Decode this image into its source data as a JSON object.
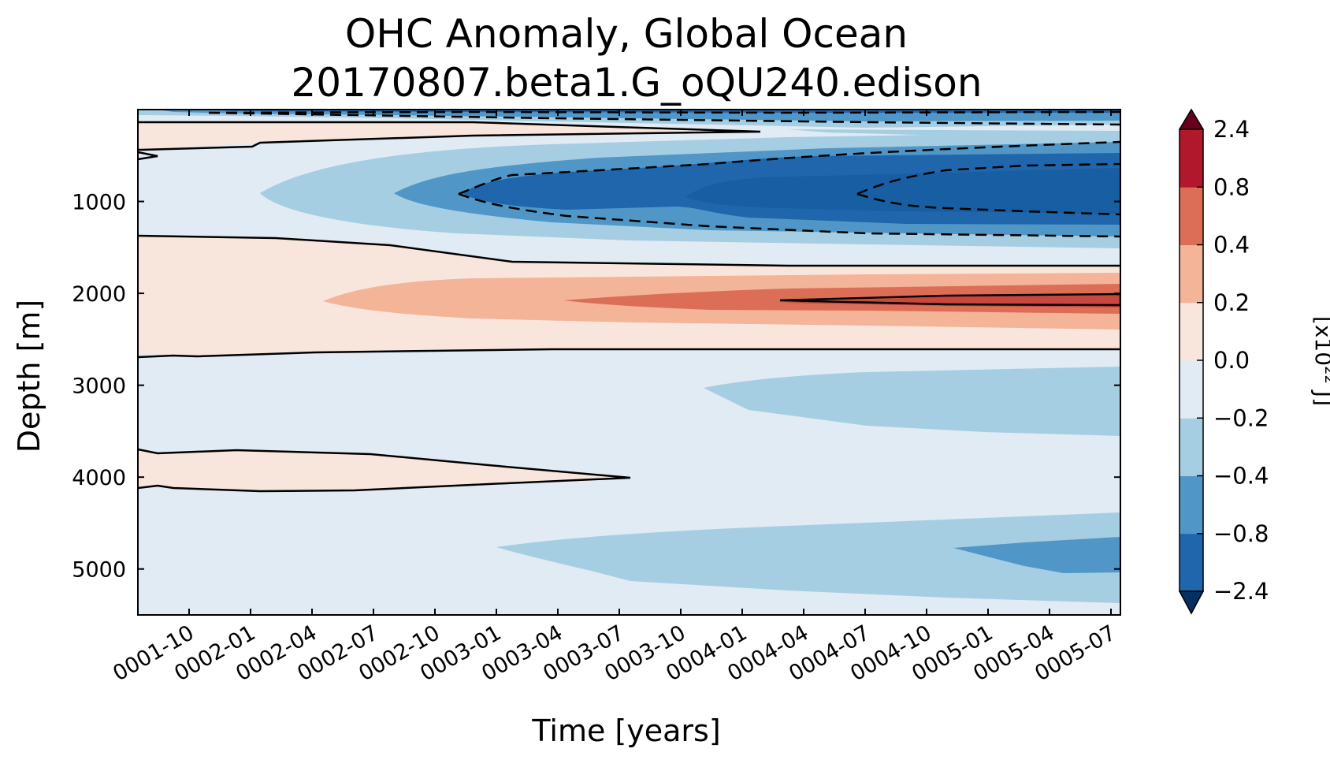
{
  "chart_data": {
    "type": "heatmap",
    "subtype": "filled-contour",
    "title_line1": "OHC Anomaly, Global Ocean",
    "title_line2": "20170807.beta1.G_oQU240.edison",
    "xlabel": "Time [years]",
    "ylabel": "Depth [m]",
    "colorbar_label_prefix": "[x10",
    "colorbar_label_exponent": "22",
    "colorbar_label_suffix": " J]",
    "x_tick_labels": [
      "0001-10",
      "0002-01",
      "0002-04",
      "0002-07",
      "0002-10",
      "0003-01",
      "0003-04",
      "0003-07",
      "0003-10",
      "0004-01",
      "0004-04",
      "0004-07",
      "0004-10",
      "0005-01",
      "0005-04",
      "0005-07"
    ],
    "y_ticks": [
      1000,
      2000,
      3000,
      4000,
      5000
    ],
    "y_tick_labels": [
      "1000",
      "2000",
      "3000",
      "4000",
      "5000"
    ],
    "ylim": [
      5500,
      0
    ],
    "colorbar_levels": [
      -2.4,
      -0.8,
      -0.4,
      -0.2,
      0.0,
      0.2,
      0.4,
      0.8,
      2.4
    ],
    "colorbar_tick_labels": [
      "−2.4",
      "−0.8",
      "−0.4",
      "−0.2",
      "0.0",
      "0.2",
      "0.4",
      "0.8",
      "2.4"
    ],
    "colorbar_colors": [
      "#2066ac",
      "#5097c8",
      "#a6cee3",
      "#e0ebf3",
      "#f8e6dc",
      "#f4b498",
      "#dc6e57",
      "#b2182b"
    ],
    "colorbar_extend_min_color": "#053061",
    "colorbar_extend_max_color": "#67001f",
    "background_color": "#e0ebf3",
    "contour_line_color": "#000000",
    "features": [
      {
        "name": "surface-cooling-band",
        "depth_range_m": [
          0,
          150
        ],
        "anomaly": "<-0.4"
      },
      {
        "name": "upper-ocean-cooling-core",
        "depth_range_m": [
          600,
          1400
        ],
        "min_anomaly": "<-0.8",
        "strengthens_with_time": true
      },
      {
        "name": "mid-depth-warming-core",
        "depth_range_m": [
          1700,
          2600
        ],
        "max_anomaly": ">0.4",
        "strengthens_with_time": true
      },
      {
        "name": "deep-cooling",
        "depth_range_m": [
          2800,
          3600
        ],
        "anomaly": "-0.2 to -0.4"
      },
      {
        "name": "warm-lens-4000m",
        "depth_range_m": [
          3700,
          4100
        ],
        "anomaly": "0.0 to 0.2"
      },
      {
        "name": "abyssal-cooling",
        "depth_range_m": [
          4400,
          5400
        ],
        "anomaly": "-0.2 to -0.8"
      }
    ]
  }
}
